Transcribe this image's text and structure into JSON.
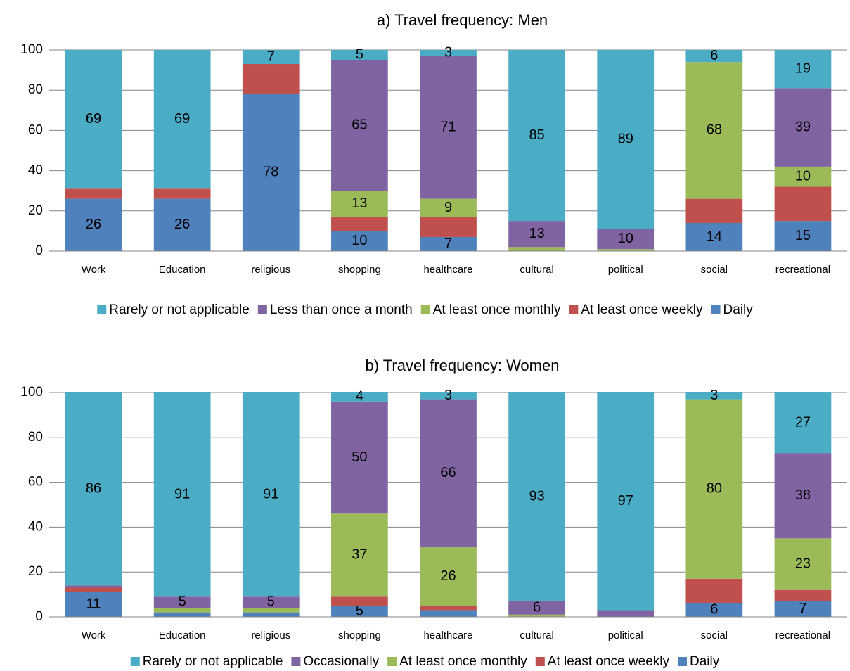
{
  "chart_data": [
    {
      "type": "stacked_bar",
      "title": "a) Travel frequency: Men",
      "categories": [
        "Work",
        "Education",
        "religious",
        "shopping",
        "healthcare",
        "cultural",
        "political",
        "social",
        "recreational"
      ],
      "ylim": [
        0,
        100
      ],
      "yticks": [
        0,
        20,
        40,
        60,
        80,
        100
      ],
      "grid": true,
      "legend": "bottom",
      "series": [
        {
          "name": "Rarely or not applicable",
          "color": "#4bacc6",
          "values": [
            69,
            69,
            7,
            5,
            3,
            85,
            89,
            6,
            19
          ],
          "value_labels": [
            "69",
            "69",
            "7",
            "5",
            "3",
            "85",
            "89",
            "6",
            "19"
          ]
        },
        {
          "name": "Less than once a month",
          "color": "#8064a2",
          "values": [
            0,
            0,
            0,
            65,
            71,
            13,
            10,
            0,
            39
          ],
          "value_labels": [
            null,
            null,
            null,
            "65",
            "71",
            "13",
            "10",
            null,
            "39"
          ]
        },
        {
          "name": "At least once monthly",
          "color": "#9bbb59",
          "values": [
            0,
            0,
            0,
            13,
            9,
            2,
            1,
            68,
            10
          ],
          "value_labels": [
            null,
            null,
            null,
            "13",
            "9",
            null,
            null,
            "68",
            "10"
          ]
        },
        {
          "name": "At least once weekly",
          "color": "#c0504d",
          "values": [
            5,
            5,
            15,
            7,
            10,
            0,
            0,
            12,
            17
          ],
          "value_labels": [
            null,
            null,
            null,
            null,
            null,
            null,
            null,
            null,
            null
          ]
        },
        {
          "name": "Daily",
          "color": "#4f81bd",
          "values": [
            26,
            26,
            78,
            10,
            7,
            0,
            0,
            14,
            15
          ],
          "value_labels": [
            "26",
            "26",
            "78",
            "10",
            "7",
            null,
            null,
            "14",
            "15"
          ]
        }
      ]
    },
    {
      "type": "stacked_bar",
      "title": "b) Travel frequency: Women",
      "categories": [
        "Work",
        "Education",
        "religious",
        "shopping",
        "healthcare",
        "cultural",
        "political",
        "social",
        "recreational"
      ],
      "ylim": [
        0,
        100
      ],
      "yticks": [
        0,
        20,
        40,
        60,
        80,
        100
      ],
      "grid": true,
      "legend": "bottom",
      "series": [
        {
          "name": "Rarely or not applicable",
          "color": "#4bacc6",
          "values": [
            86,
            91,
            91,
            4,
            3,
            93,
            97,
            3,
            27
          ],
          "value_labels": [
            "86",
            "91",
            "91",
            "4",
            "3",
            "93",
            "97",
            "3",
            "27"
          ]
        },
        {
          "name": "Occasionally",
          "color": "#8064a2",
          "values": [
            1,
            5,
            5,
            50,
            66,
            6,
            3,
            0,
            38
          ],
          "value_labels": [
            null,
            "5",
            "5",
            "50",
            "66",
            "6",
            null,
            null,
            "38"
          ]
        },
        {
          "name": "At least once monthly",
          "color": "#9bbb59",
          "values": [
            0,
            2,
            2,
            37,
            26,
            1,
            0,
            80,
            23
          ],
          "value_labels": [
            null,
            null,
            null,
            "37",
            "26",
            null,
            null,
            "80",
            "23"
          ]
        },
        {
          "name": "At least once weekly",
          "color": "#c0504d",
          "values": [
            2,
            0,
            0,
            4,
            2,
            0,
            0,
            11,
            5
          ],
          "value_labels": [
            null,
            null,
            null,
            null,
            null,
            null,
            null,
            null,
            null
          ]
        },
        {
          "name": "Daily",
          "color": "#4f81bd",
          "values": [
            11,
            2,
            2,
            5,
            3,
            0,
            0,
            6,
            7
          ],
          "value_labels": [
            "11",
            null,
            null,
            "5",
            null,
            null,
            null,
            "6",
            "7"
          ]
        }
      ]
    }
  ]
}
